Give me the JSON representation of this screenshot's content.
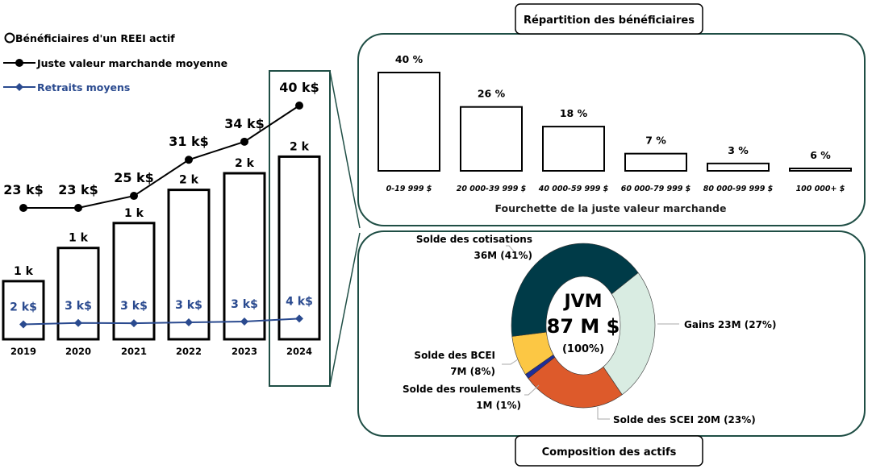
{
  "chart_data": [
    {
      "type": "bar+line",
      "categories": [
        "2019",
        "2020",
        "2021",
        "2022",
        "2023",
        "2024"
      ],
      "legend": [
        "Bénéficiaires d'un REEI actif",
        "Juste valeur marchande moyenne",
        "Retraits moyens"
      ],
      "legend_position": "top-left",
      "highlighted_category": "2024",
      "series": [
        {
          "name": "Bénéficiaires d'un REEI actif",
          "kind": "bar",
          "values": [
            0.7,
            1.1,
            1.4,
            1.8,
            2.0,
            2.2
          ],
          "labels": [
            "1 k",
            "1 k",
            "1 k",
            "2 k",
            "2 k",
            "2 k"
          ]
        },
        {
          "name": "Juste valeur marchande moyenne",
          "kind": "line",
          "color": "#000000",
          "values": [
            23,
            23,
            25,
            31,
            34,
            40
          ],
          "labels": [
            "23 k$",
            "23 k$",
            "25 k$",
            "31 k$",
            "34 k$",
            "40 k$"
          ]
        },
        {
          "name": "Retraits moyens",
          "kind": "line",
          "color": "#2a4a8f",
          "values": [
            2.4,
            2.9,
            2.8,
            3.1,
            3.4,
            4.4
          ],
          "labels": [
            "2 k$",
            "3 k$",
            "3 k$",
            "3 k$",
            "3 k$",
            "4 k$"
          ]
        }
      ]
    },
    {
      "type": "bar",
      "title": "Répartition des bénéficiaires",
      "xlabel": "Fourchette de la juste valeur marchande",
      "categories": [
        "0-19 999 $",
        "20 000-39 999 $",
        "40 000-59 999 $",
        "60 000-79 999 $",
        "80 000-99 999 $",
        "100 000+ $"
      ],
      "values": [
        40,
        26,
        18,
        7,
        3,
        6
      ],
      "labels": [
        "40 %",
        "26 %",
        "18 %",
        "7 %",
        "3 %",
        "6 %"
      ]
    },
    {
      "type": "pie",
      "title": "Composition des actifs",
      "center": {
        "line1": "JVM",
        "line2": "87 M $",
        "line3": "(100%)"
      },
      "slices": [
        {
          "name": "Gains",
          "value": 23,
          "pct": 27,
          "color": "#d9ece2",
          "label1": "Gains 23M (27%)",
          "label2": ""
        },
        {
          "name": "Solde des SCEI",
          "value": 20,
          "pct": 23,
          "color": "#dd5a2b",
          "label1": "Solde des SCEI 20M (23%)",
          "label2": ""
        },
        {
          "name": "Solde des roulements",
          "value": 1,
          "pct": 1,
          "color": "#1f2d9a",
          "label1": "Solde des roulements",
          "label2": "1M (1%)"
        },
        {
          "name": "Solde des BCEI",
          "value": 7,
          "pct": 8,
          "color": "#fcc744",
          "label1": "Solde des BCEI",
          "label2": "7M (8%)"
        },
        {
          "name": "Solde des cotisations",
          "value": 36,
          "pct": 41,
          "color": "#003b48",
          "label1": "Solde des cotisations",
          "label2": "36M (41%)"
        }
      ]
    }
  ],
  "colors": {
    "frame": "#1f4e45"
  }
}
